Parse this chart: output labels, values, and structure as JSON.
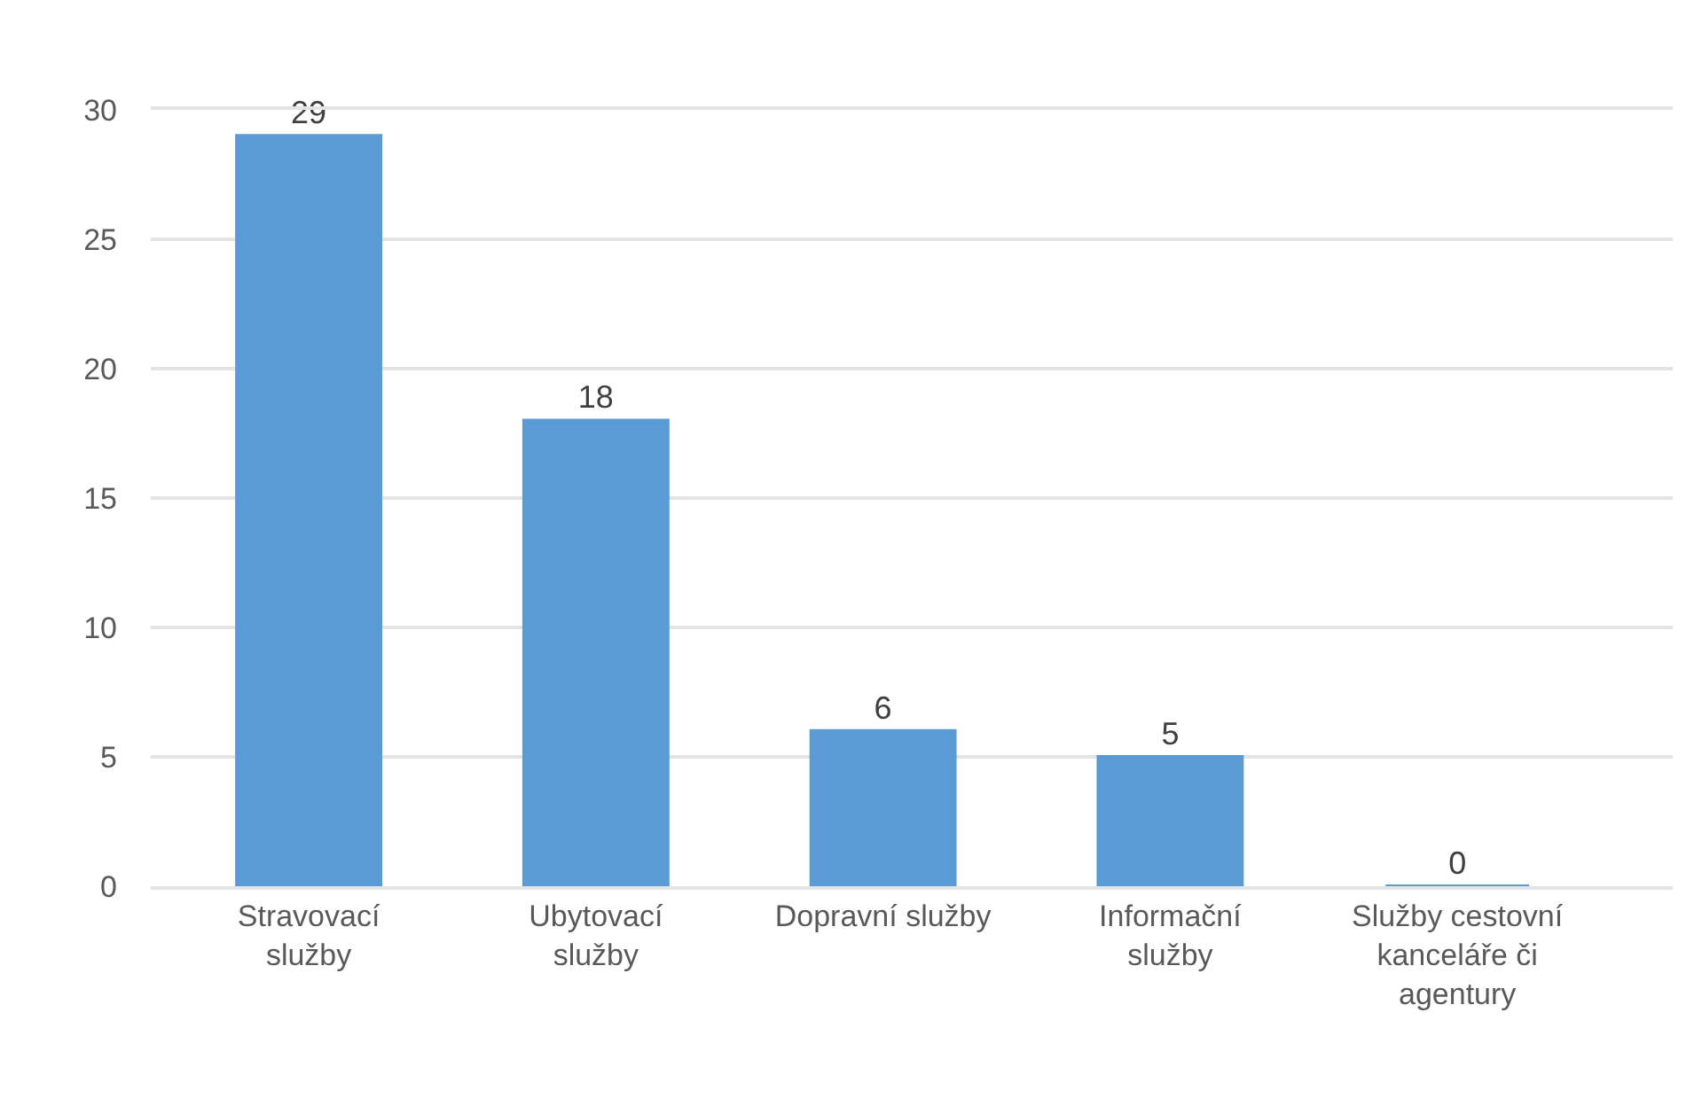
{
  "chart_data": {
    "type": "bar",
    "categories": [
      "Stravovací služby",
      "Ubytovací služby",
      "Dopravní služby",
      "Informační služby",
      "Služby cestovní kanceláře či agentury"
    ],
    "values": [
      29,
      18,
      6,
      5,
      0
    ],
    "color": "#5b9bd5",
    "ylim": [
      0,
      30
    ],
    "yticks": [
      0,
      5,
      10,
      15,
      20,
      25,
      30
    ],
    "grid": "y",
    "data_labels": true
  }
}
